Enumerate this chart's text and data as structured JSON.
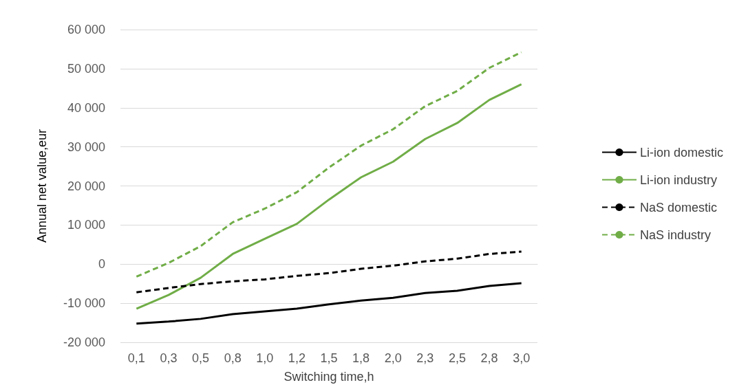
{
  "chart_data": {
    "type": "line",
    "xlabel": "Switching time,h",
    "ylabel": "Annual net value,eur",
    "categories": [
      "0,1",
      "0,3",
      "0,5",
      "0,8",
      "1,0",
      "1,2",
      "1,5",
      "1,8",
      "2,0",
      "2,3",
      "2,5",
      "2,8",
      "3,0"
    ],
    "series": [
      {
        "name": "Li-ion domestic",
        "color": "#000000",
        "line_style": "solid",
        "values": [
          -15200,
          -14700,
          -14000,
          -12800,
          -12100,
          -11400,
          -10300,
          -9300,
          -8600,
          -7400,
          -6800,
          -5600,
          -4900
        ]
      },
      {
        "name": "Li-ion industry",
        "color": "#70ad47",
        "line_style": "solid",
        "values": [
          -11400,
          -7900,
          -3500,
          2600,
          6500,
          10300,
          16500,
          22200,
          26200,
          32000,
          36100,
          42000,
          46000
        ]
      },
      {
        "name": "NaS domestic",
        "color": "#000000",
        "line_style": "dashed",
        "values": [
          -7200,
          -6100,
          -5100,
          -4400,
          -3900,
          -3000,
          -2300,
          -1200,
          -400,
          700,
          1400,
          2600,
          3200
        ]
      },
      {
        "name": "NaS industry",
        "color": "#70ad47",
        "line_style": "dashed",
        "values": [
          -3200,
          300,
          4600,
          10700,
          14200,
          18400,
          24700,
          30300,
          34500,
          40400,
          44300,
          50200,
          54200
        ]
      }
    ],
    "ylim": [
      -20000,
      60000
    ],
    "yticks": [
      {
        "value": -20000,
        "label": "-20 000"
      },
      {
        "value": -10000,
        "label": "-10 000"
      },
      {
        "value": 0,
        "label": "0"
      },
      {
        "value": 10000,
        "label": "10 000"
      },
      {
        "value": 20000,
        "label": "20 000"
      },
      {
        "value": 30000,
        "label": "30 000"
      },
      {
        "value": 40000,
        "label": "40 000"
      },
      {
        "value": 50000,
        "label": "50 000"
      },
      {
        "value": 60000,
        "label": "60 000"
      }
    ],
    "grid": "y",
    "legend": "right",
    "marker": "none"
  }
}
